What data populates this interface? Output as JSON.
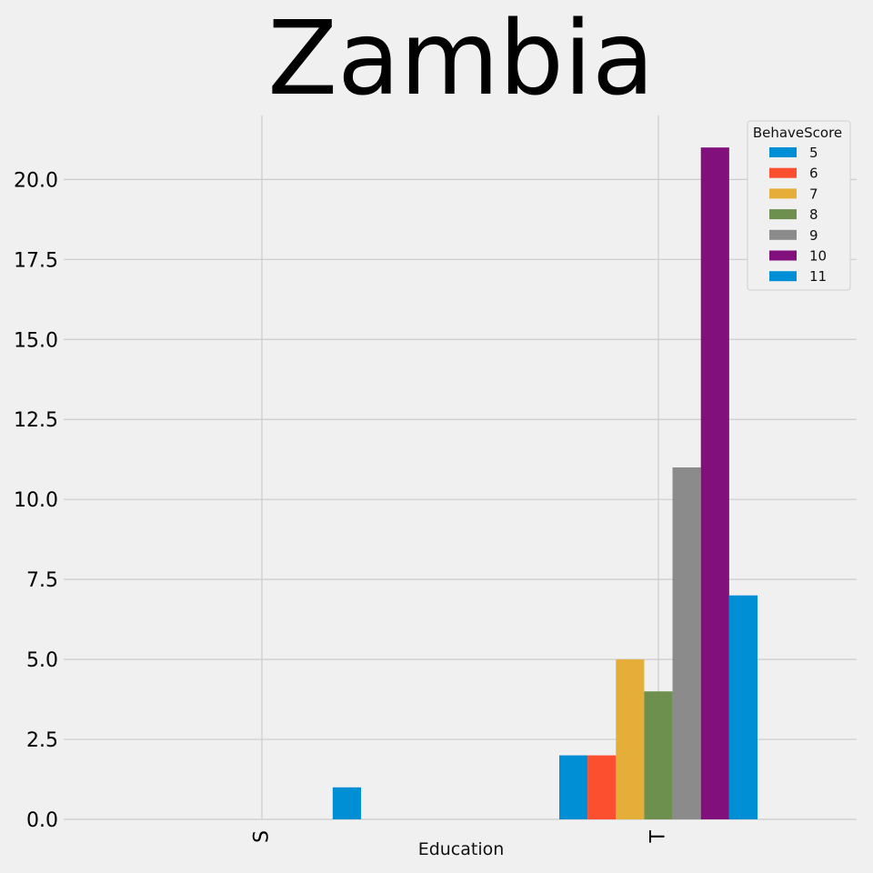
{
  "chart_data": {
    "type": "bar",
    "title": "Zambia",
    "xlabel": "Education",
    "ylabel": "",
    "categories": [
      "S",
      "T"
    ],
    "ylim": [
      0,
      22
    ],
    "yticks": [
      "0.0",
      "2.5",
      "5.0",
      "7.5",
      "10.0",
      "12.5",
      "15.0",
      "17.5",
      "20.0"
    ],
    "grid": true,
    "legend_title": "BehaveScore",
    "legend_position": "top-right",
    "series": [
      {
        "name": "5",
        "color": "#008fd5",
        "values": [
          0,
          2
        ]
      },
      {
        "name": "6",
        "color": "#fc4f30",
        "values": [
          0,
          2
        ]
      },
      {
        "name": "7",
        "color": "#e5ae38",
        "values": [
          0,
          5
        ]
      },
      {
        "name": "8",
        "color": "#6d904f",
        "values": [
          0,
          4
        ]
      },
      {
        "name": "9",
        "color": "#8b8b8b",
        "values": [
          0,
          11
        ]
      },
      {
        "name": "10",
        "color": "#810f7c",
        "values": [
          0,
          21
        ]
      },
      {
        "name": "11",
        "color": "#008fd5",
        "values": [
          1,
          7
        ]
      }
    ]
  }
}
